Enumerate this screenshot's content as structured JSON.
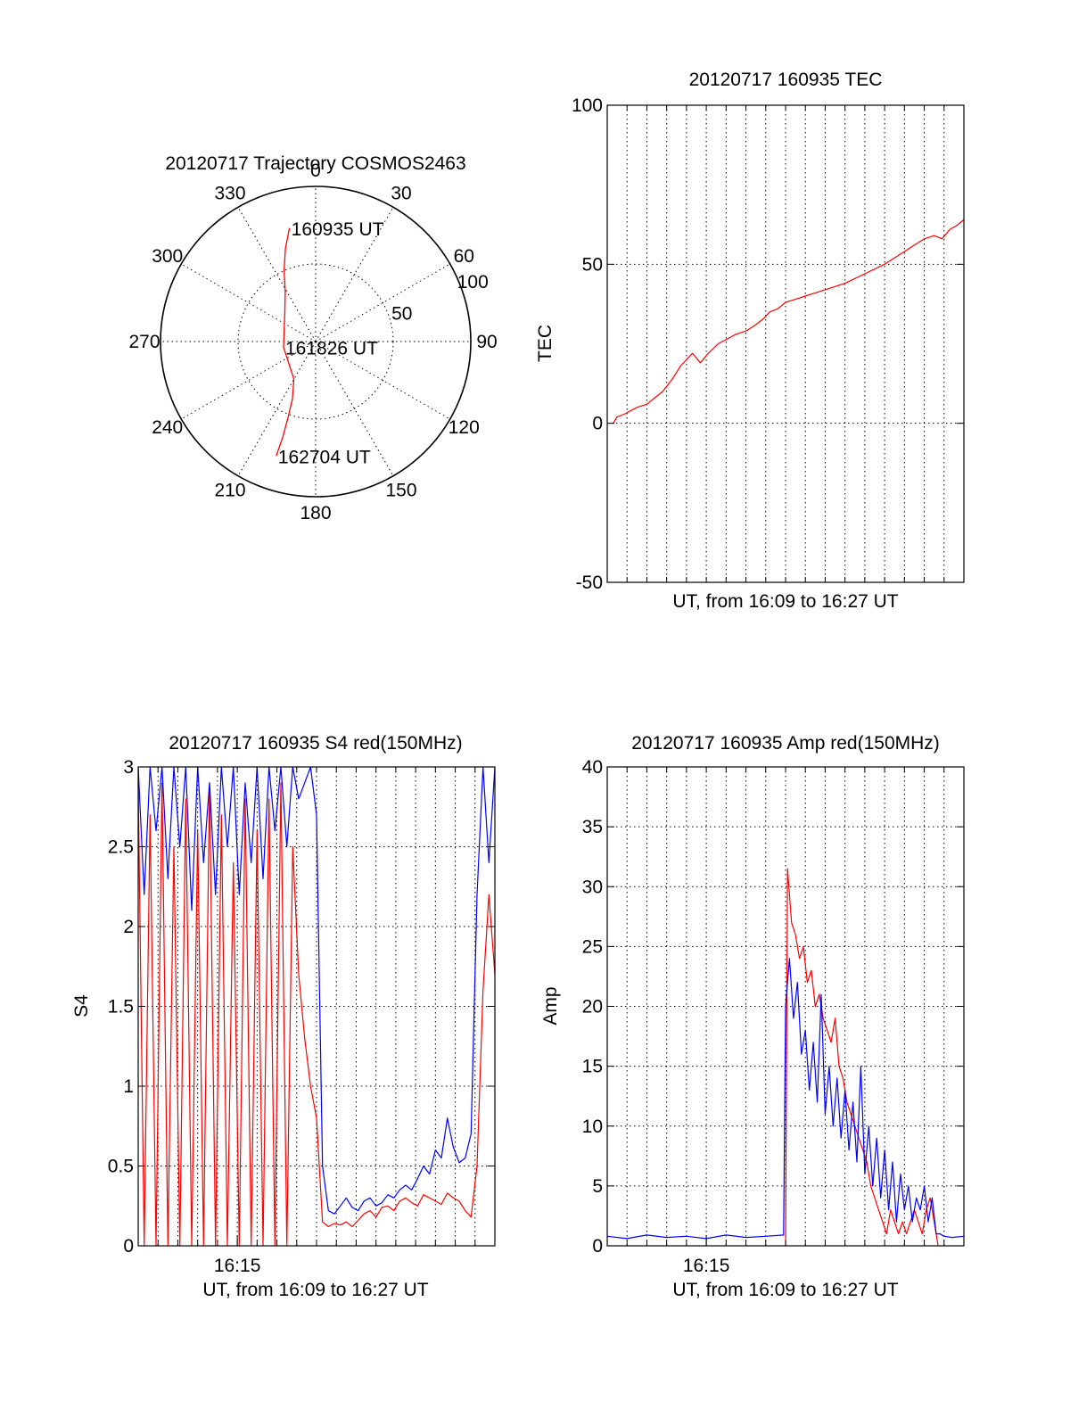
{
  "chart_data": [
    {
      "type": "polar",
      "title": "20120717 Trajectory COSMOS2463",
      "angle_labels": [
        "0",
        "30",
        "60",
        "90",
        "120",
        "150",
        "180",
        "210",
        "240",
        "270",
        "300",
        "330"
      ],
      "radial_labels": [
        "50",
        "100"
      ],
      "rlim": [
        0,
        100
      ],
      "series": [
        {
          "color": "#ff0000",
          "points": [
            [
              -13,
              75
            ],
            [
              -18,
              63
            ],
            [
              -24,
              50
            ],
            [
              -31,
              38
            ],
            [
              -45,
              28
            ],
            [
              -100,
              21
            ],
            [
              -150,
              28
            ],
            [
              -158,
              40
            ],
            [
              -160,
              52
            ],
            [
              -161,
              65
            ],
            [
              -161,
              78
            ]
          ]
        }
      ],
      "annotations": [
        {
          "text": "160935 UT",
          "at": [
            -13,
            75
          ]
        },
        {
          "text": "161826 UT",
          "at": [
            -100,
            21
          ]
        },
        {
          "text": "162704 UT",
          "at": [
            -161,
            78
          ]
        }
      ]
    },
    {
      "type": "line",
      "title": "20120717 160935 TEC",
      "xlabel": "UT, from 16:09 to 16:27 UT",
      "ylabel": "TEC",
      "xlim": [
        0,
        18
      ],
      "ylim": [
        -50,
        100
      ],
      "yticks": [
        "-50",
        "0",
        "50",
        "100"
      ],
      "xtick_labels": [],
      "grid": true,
      "series": [
        {
          "color": "#ff0000",
          "x": [
            0.3,
            0.5,
            0.9,
            1.5,
            2.0,
            2.4,
            2.8,
            3.3,
            3.7,
            4.3,
            4.7,
            5.1,
            5.6,
            6.2,
            6.5,
            7.0,
            7.5,
            7.9,
            8.2,
            8.6,
            9.0,
            9.5,
            10.0,
            10.5,
            11.0,
            12.0,
            13.0,
            14.0,
            15.0,
            15.5,
            16.0,
            16.5,
            16.9,
            17.3,
            17.6,
            18.0
          ],
          "y": [
            0,
            2,
            3,
            5,
            6,
            8,
            10,
            14,
            18,
            22,
            19,
            22,
            25,
            27,
            28,
            29,
            31,
            33,
            35,
            36,
            38,
            39,
            40,
            41,
            42,
            44,
            47,
            50,
            54,
            56,
            58,
            59,
            58,
            61,
            62,
            64
          ]
        }
      ]
    },
    {
      "type": "line",
      "title": "20120717 160935 S4 red(150MHz)",
      "xlabel": "UT, from 16:09 to 16:27 UT",
      "ylabel": "S4",
      "xlim": [
        0,
        18
      ],
      "ylim": [
        0,
        3
      ],
      "yticks": [
        "0",
        "0.5",
        "1",
        "1.5",
        "2",
        "2.5",
        "3"
      ],
      "xtick_labels": [
        {
          "x": 5.0,
          "label": "16:15"
        }
      ],
      "grid": true,
      "series": [
        {
          "color": "#ff0000",
          "x": [
            0,
            0.3,
            0.6,
            0.9,
            1.2,
            1.5,
            1.8,
            2.1,
            2.4,
            2.7,
            3.0,
            3.3,
            3.6,
            3.9,
            4.2,
            4.5,
            4.8,
            5.1,
            5.4,
            5.7,
            6.0,
            6.3,
            6.6,
            6.9,
            7.2,
            7.5,
            7.8,
            8.1,
            8.4,
            8.7,
            9.0,
            9.3,
            9.6,
            9.9,
            10.2,
            10.5,
            10.8,
            11.1,
            11.4,
            11.7,
            12.0,
            12.3,
            12.6,
            12.9,
            13.2,
            13.5,
            13.8,
            14.1,
            14.4,
            14.7,
            15.0,
            15.3,
            15.6,
            15.9,
            16.2,
            16.5,
            16.8,
            17.1,
            17.4,
            17.7,
            18.0
          ],
          "y": [
            2.9,
            0,
            2.7,
            0,
            2.9,
            0,
            2.5,
            0,
            2.8,
            0,
            2.6,
            0,
            2.9,
            0,
            2.7,
            0,
            2.4,
            0,
            2.8,
            0,
            2.6,
            0,
            2.8,
            0,
            2.9,
            0,
            2.5,
            1.7,
            1.3,
            1.0,
            0.8,
            0.15,
            0.12,
            0.14,
            0.13,
            0.15,
            0.12,
            0.16,
            0.2,
            0.22,
            0.18,
            0.24,
            0.25,
            0.22,
            0.28,
            0.3,
            0.27,
            0.25,
            0.32,
            0.3,
            0.28,
            0.26,
            0.33,
            0.3,
            0.28,
            0.22,
            0.18,
            0.5,
            1.6,
            2.2,
            1.7
          ]
        },
        {
          "color": "#0000ff",
          "x": [
            0,
            0.3,
            0.6,
            0.9,
            1.2,
            1.5,
            1.8,
            2.1,
            2.4,
            2.7,
            3.0,
            3.3,
            3.6,
            3.9,
            4.2,
            4.5,
            4.8,
            5.1,
            5.4,
            5.7,
            6.0,
            6.3,
            6.6,
            6.9,
            7.2,
            7.5,
            7.8,
            8.1,
            8.4,
            8.7,
            9.0,
            9.3,
            9.6,
            9.9,
            10.2,
            10.5,
            10.8,
            11.1,
            11.4,
            11.7,
            12.0,
            12.3,
            12.6,
            12.9,
            13.2,
            13.5,
            13.8,
            14.1,
            14.4,
            14.7,
            15.0,
            15.3,
            15.6,
            15.9,
            16.2,
            16.5,
            16.8,
            17.1,
            17.4,
            17.7,
            18.0
          ],
          "y": [
            3.0,
            2.2,
            3.0,
            2.6,
            3.0,
            2.3,
            3.0,
            2.5,
            3.0,
            2.1,
            3.0,
            2.4,
            2.9,
            2.2,
            3.0,
            2.5,
            3.0,
            2.2,
            2.9,
            2.4,
            3.0,
            2.3,
            3.0,
            2.6,
            3.0,
            2.5,
            3.0,
            2.8,
            2.9,
            3.0,
            2.7,
            0.5,
            0.22,
            0.2,
            0.25,
            0.3,
            0.24,
            0.22,
            0.28,
            0.3,
            0.25,
            0.27,
            0.32,
            0.3,
            0.35,
            0.38,
            0.35,
            0.42,
            0.5,
            0.45,
            0.6,
            0.55,
            0.8,
            0.62,
            0.52,
            0.55,
            0.7,
            2.2,
            3.0,
            2.4,
            3.0
          ]
        }
      ]
    },
    {
      "type": "line",
      "title": "20120717 160935 Amp red(150MHz)",
      "xlabel": "UT, from 16:09 to 16:27 UT",
      "ylabel": "Amp",
      "xlim": [
        0,
        18
      ],
      "ylim": [
        0,
        40
      ],
      "yticks": [
        "0",
        "5",
        "10",
        "15",
        "20",
        "25",
        "30",
        "35",
        "40"
      ],
      "xtick_labels": [
        {
          "x": 5.0,
          "label": "16:15"
        }
      ],
      "grid": true,
      "series": [
        {
          "color": "#ff0000",
          "x": [
            9.0,
            9.1,
            9.3,
            9.5,
            9.7,
            9.9,
            10.1,
            10.3,
            10.5,
            10.7,
            10.9,
            11.1,
            11.3,
            11.5,
            11.7,
            11.9,
            12.1,
            12.3,
            12.5,
            12.7,
            12.9,
            13.1,
            13.3,
            13.5,
            13.7,
            13.9,
            14.1,
            14.3,
            14.5,
            14.7,
            14.9,
            15.1,
            15.3,
            15.5,
            15.7,
            15.9,
            16.1,
            16.3,
            16.5,
            16.7
          ],
          "y": [
            0,
            31.5,
            27,
            26,
            24,
            25,
            22,
            23,
            20,
            21,
            19,
            18,
            17,
            19,
            15,
            14,
            12,
            11,
            10,
            9,
            8,
            7,
            5,
            4,
            3,
            2,
            1,
            3,
            2,
            1,
            2,
            1,
            2,
            3,
            2,
            1,
            3,
            4,
            2,
            0
          ]
        },
        {
          "color": "#0000ff",
          "x": [
            0,
            1,
            2,
            3,
            4,
            5,
            6,
            7,
            8,
            8.9,
            9.0,
            9.2,
            9.4,
            9.6,
            9.8,
            10.0,
            10.2,
            10.4,
            10.6,
            10.8,
            11.0,
            11.2,
            11.4,
            11.6,
            11.8,
            12.0,
            12.2,
            12.4,
            12.6,
            12.8,
            13.0,
            13.2,
            13.4,
            13.6,
            13.8,
            14.0,
            14.2,
            14.4,
            14.6,
            14.8,
            15.0,
            15.2,
            15.4,
            15.6,
            15.8,
            16.0,
            16.2,
            16.4,
            16.6,
            16.8,
            17.0,
            17.4,
            18.0
          ],
          "y": [
            0.8,
            0.6,
            0.9,
            0.7,
            0.8,
            0.6,
            0.9,
            0.7,
            0.8,
            0.9,
            20,
            24,
            19,
            22,
            16,
            18,
            13,
            17,
            12,
            21,
            11,
            15,
            10,
            14,
            9,
            13,
            8,
            12,
            7,
            15,
            6,
            10,
            5,
            9,
            4,
            8,
            3,
            7,
            2,
            6,
            3,
            5,
            2,
            4,
            3,
            5,
            2,
            4,
            1,
            1,
            0.8,
            0.7,
            0.8
          ]
        }
      ]
    }
  ]
}
